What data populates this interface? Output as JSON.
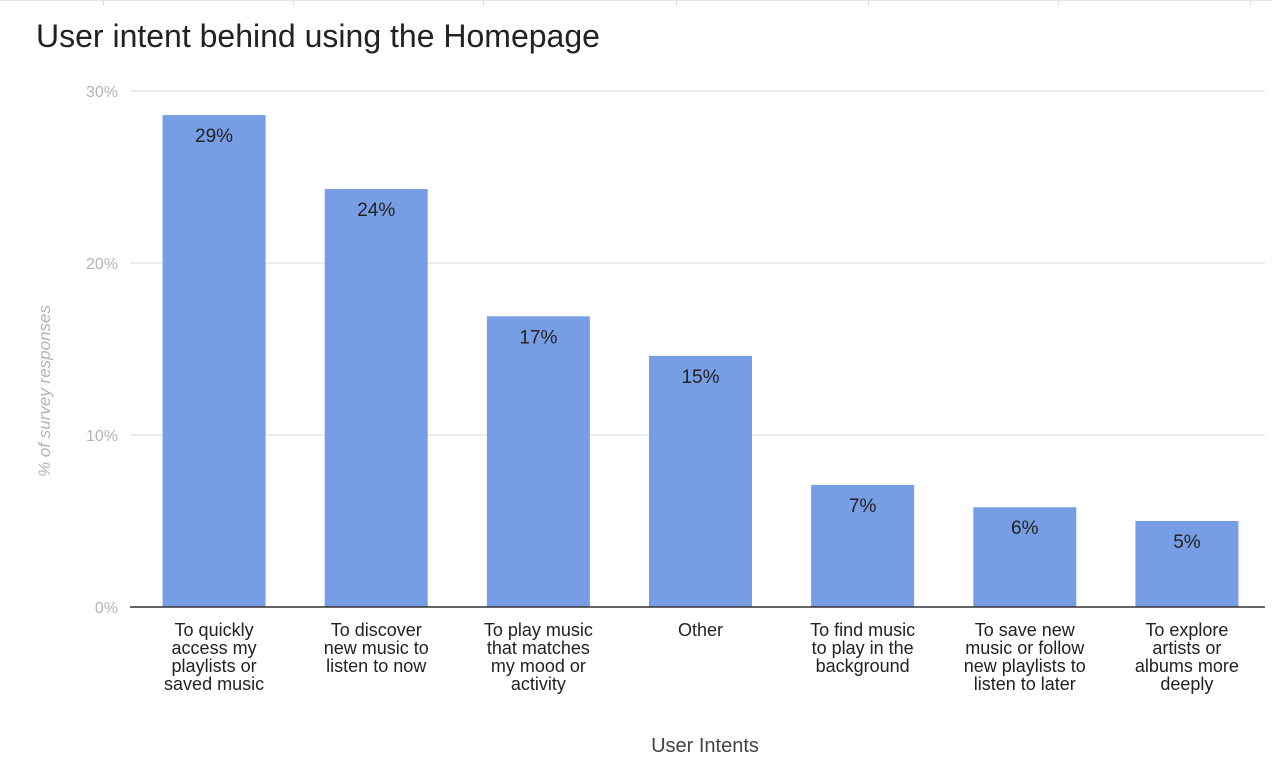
{
  "chart_data": {
    "type": "bar",
    "title": "User intent behind using the Homepage",
    "xlabel": "User Intents",
    "ylabel": "% of survey responses",
    "ylim": [
      0,
      30
    ],
    "yticks": [
      "0%",
      "10%",
      "20%",
      "30%"
    ],
    "ytick_values": [
      0,
      10,
      20,
      30
    ],
    "grid": true,
    "bar_color": "#779ee4",
    "categories": [
      [
        "To quickly",
        "access my",
        "playlists or",
        "saved music"
      ],
      [
        "To discover",
        "new music to",
        "listen to now"
      ],
      [
        "To play music",
        "that matches",
        "my mood or",
        "activity"
      ],
      [
        "Other"
      ],
      [
        "To find music",
        "to play in the",
        "background"
      ],
      [
        "To save new",
        "music or follow",
        "new playlists to",
        "listen to later"
      ],
      [
        "To explore",
        "artists or",
        "albums more",
        "deeply"
      ]
    ],
    "values": [
      28.6,
      24.3,
      16.9,
      14.6,
      7.1,
      5.8,
      5.0
    ],
    "data_labels": [
      "29%",
      "24%",
      "17%",
      "15%",
      "7%",
      "6%",
      "5%"
    ]
  }
}
